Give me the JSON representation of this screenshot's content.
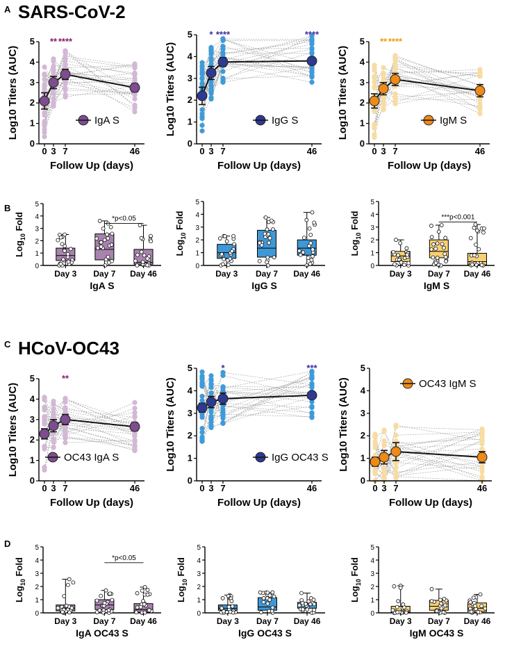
{
  "sections": {
    "A": {
      "letter": "A",
      "title": "SARS-CoV-2"
    },
    "B": {
      "letter": "B"
    },
    "C": {
      "letter": "C",
      "title": "HCoV-OC43"
    },
    "D": {
      "letter": "D"
    }
  },
  "colors": {
    "IgA_dark": "#7d4d8f",
    "IgA_light": "#d3b8d6",
    "IgA_box": "#a883ae",
    "IgG_dark": "#2c3a92",
    "IgG_light": "#3f9bd8",
    "IgG_box": "#3f97d5",
    "IgM_dark": "#ee8a17",
    "IgM_light": "#f7dca3",
    "IgM_box": "#f8cf73",
    "sigA": "#8c1a6e",
    "sigG": "#3a2d9c",
    "sigM": "#f19a10"
  },
  "chart_data": [
    {
      "id": "A1",
      "type": "line",
      "title": "",
      "xlabel": "Follow Up (days)",
      "ylabel": "Log10 Titers (AUC)",
      "xticks": [
        "0",
        "3",
        "7",
        "46"
      ],
      "x": [
        0,
        3,
        7,
        46
      ],
      "ylim": [
        0,
        5
      ],
      "yticks": [
        0,
        1,
        2,
        3,
        4,
        5
      ],
      "legend": "IgA S",
      "legend_position": "bottom-right",
      "color_key": "IgA",
      "series": [
        {
          "name": "IgA S mean",
          "values": [
            2.1,
            3.0,
            3.4,
            2.75
          ],
          "err": [
            0.4,
            0.3,
            0.25,
            0.2
          ]
        }
      ],
      "significance": [
        {
          "x": 3,
          "label": "**"
        },
        {
          "x": 7,
          "label": "****"
        }
      ],
      "sig_color_key": "sigA"
    },
    {
      "id": "A2",
      "type": "line",
      "title": "",
      "xlabel": "Follow Up (days)",
      "ylabel": "Log10 Titers (AUC)",
      "xticks": [
        "0",
        "3",
        "7",
        "46"
      ],
      "x": [
        0,
        3,
        7,
        46
      ],
      "ylim": [
        0,
        5
      ],
      "yticks": [
        0,
        1,
        2,
        3,
        4,
        5
      ],
      "legend": "IgG S",
      "legend_position": "bottom-right",
      "color_key": "IgG",
      "series": [
        {
          "name": "IgG S mean",
          "values": [
            2.2,
            3.25,
            3.75,
            3.8
          ],
          "err": [
            0.4,
            0.3,
            0.2,
            0.1
          ]
        }
      ],
      "significance": [
        {
          "x": 3,
          "label": "*"
        },
        {
          "x": 7,
          "label": "****"
        },
        {
          "x": 46,
          "label": "****"
        }
      ],
      "sig_color_key": "sigG"
    },
    {
      "id": "A3",
      "type": "line",
      "title": "",
      "xlabel": "Follow Up (days)",
      "ylabel": "Log10 Titers (AUC)",
      "xticks": [
        "0",
        "3",
        "7",
        "46"
      ],
      "x": [
        0,
        3,
        7,
        46
      ],
      "ylim": [
        0,
        5
      ],
      "yticks": [
        0,
        1,
        2,
        3,
        4,
        5
      ],
      "legend": "IgM S",
      "legend_position": "bottom-right",
      "color_key": "IgM",
      "series": [
        {
          "name": "IgM S mean",
          "values": [
            2.1,
            2.7,
            3.15,
            2.6
          ],
          "err": [
            0.35,
            0.3,
            0.3,
            0.3
          ]
        }
      ],
      "significance": [
        {
          "x": 3,
          "label": "**"
        },
        {
          "x": 7,
          "label": "****"
        }
      ],
      "sig_color_key": "sigM"
    },
    {
      "id": "B1",
      "type": "box",
      "title": "",
      "xlabel": "IgA S",
      "ylabel": "Log10 Fold",
      "color_key": "IgA",
      "categories": [
        "Day 3",
        "Day 7",
        "Day 46"
      ],
      "ylim": [
        0,
        5
      ],
      "yticks": [
        0,
        1,
        2,
        3,
        4,
        5
      ],
      "boxes": [
        {
          "min": 0.0,
          "q1": 0.4,
          "median": 0.8,
          "q3": 1.4,
          "max": 2.5
        },
        {
          "min": 0.0,
          "q1": 0.45,
          "median": 1.3,
          "q3": 2.55,
          "max": 3.6
        },
        {
          "min": 0.0,
          "q1": 0.1,
          "median": 0.25,
          "q3": 1.3,
          "max": 3.25
        }
      ],
      "comparison": {
        "from": 1,
        "to": 2,
        "label": "*p<0.05",
        "y": 3.4
      }
    },
    {
      "id": "B2",
      "type": "box",
      "title": "",
      "xlabel": "IgG S",
      "ylabel": "Log10 Fold",
      "color_key": "IgG",
      "categories": [
        "Day 3",
        "Day 7",
        "Day 46"
      ],
      "ylim": [
        0,
        5
      ],
      "yticks": [
        0,
        1,
        2,
        3,
        4,
        5
      ],
      "boxes": [
        {
          "min": 0.0,
          "q1": 0.55,
          "median": 1.0,
          "q3": 1.65,
          "max": 2.3
        },
        {
          "min": 0.0,
          "q1": 0.65,
          "median": 1.35,
          "q3": 2.75,
          "max": 3.75
        },
        {
          "min": 0.0,
          "q1": 0.8,
          "median": 1.35,
          "q3": 2.0,
          "max": 4.15
        }
      ]
    },
    {
      "id": "B3",
      "type": "box",
      "title": "",
      "xlabel": "IgM S",
      "ylabel": "Log10 Fold",
      "color_key": "IgM",
      "categories": [
        "Day 3",
        "Day 7",
        "Day 46"
      ],
      "ylim": [
        0,
        5
      ],
      "yticks": [
        0,
        1,
        2,
        3,
        4,
        5
      ],
      "boxes": [
        {
          "min": 0.0,
          "q1": 0.3,
          "median": 0.75,
          "q3": 1.1,
          "max": 2.0
        },
        {
          "min": 0.0,
          "q1": 0.6,
          "median": 1.1,
          "q3": 2.0,
          "max": 3.15
        },
        {
          "min": 0.0,
          "q1": 0.05,
          "median": 0.3,
          "q3": 0.95,
          "max": 3.2
        }
      ],
      "comparison": {
        "from": 1,
        "to": 2,
        "label": "***p<0.001",
        "y": 3.4
      }
    },
    {
      "id": "C1",
      "type": "line",
      "title": "",
      "xlabel": "Follow Up (days)",
      "ylabel": "Log10 Titers (AUC)",
      "xticks": [
        "0",
        "3",
        "7",
        "46"
      ],
      "x": [
        0,
        3,
        7,
        46
      ],
      "ylim": [
        0,
        5
      ],
      "yticks": [
        0,
        1,
        2,
        3,
        4,
        5
      ],
      "legend": "OC43 IgA S",
      "legend_position": "bottom-left",
      "color_key": "IgA",
      "series": [
        {
          "name": "OC43 IgA S mean",
          "values": [
            2.3,
            2.7,
            3.0,
            2.65
          ],
          "err": [
            0.25,
            0.3,
            0.25,
            0.2
          ]
        }
      ],
      "significance": [
        {
          "x": 7,
          "label": "**"
        }
      ],
      "sig_color_key": "sigA"
    },
    {
      "id": "C2",
      "type": "line",
      "title": "",
      "xlabel": "Follow Up (days)",
      "ylabel": "Log10 Titers (AUC)",
      "xticks": [
        "0",
        "3",
        "7",
        "46"
      ],
      "x": [
        0,
        3,
        7,
        46
      ],
      "ylim": [
        0,
        5
      ],
      "yticks": [
        0,
        1,
        2,
        3,
        4,
        5
      ],
      "legend": "IgG OC43 S",
      "legend_position": "bottom-right",
      "color_key": "IgG",
      "series": [
        {
          "name": "IgG OC43 S mean",
          "values": [
            3.25,
            3.5,
            3.65,
            3.8
          ],
          "err": [
            0.2,
            0.25,
            0.25,
            0.15
          ]
        }
      ],
      "significance": [
        {
          "x": 7,
          "label": "*"
        },
        {
          "x": 46,
          "label": "***"
        }
      ],
      "sig_color_key": "sigG"
    },
    {
      "id": "C3",
      "type": "line",
      "title": "",
      "xlabel": "Follow Up (days)",
      "ylabel": "Log10 Titers (AUC)",
      "xticks": [
        "0",
        "3",
        "7",
        "46"
      ],
      "x": [
        0,
        3,
        7,
        46
      ],
      "ylim": [
        0,
        5
      ],
      "yticks": [
        0,
        1,
        2,
        3,
        4,
        5
      ],
      "legend": "OC43 IgM S",
      "legend_position": "top-right",
      "color_key": "IgM",
      "series": [
        {
          "name": "OC43 IgM S mean",
          "values": [
            0.85,
            1.05,
            1.3,
            1.05
          ],
          "err": [
            0.2,
            0.3,
            0.4,
            0.25
          ]
        }
      ],
      "significance": [],
      "sig_color_key": "sigM"
    },
    {
      "id": "D1",
      "type": "box",
      "title": "",
      "xlabel": "IgA OC43 S",
      "ylabel": "Log10 Fold",
      "color_key": "IgA",
      "categories": [
        "Day 3",
        "Day 7",
        "Day 46"
      ],
      "ylim": [
        0,
        5
      ],
      "yticks": [
        0,
        1,
        2,
        3,
        4,
        5
      ],
      "boxes": [
        {
          "min": 0.0,
          "q1": 0.15,
          "median": 0.35,
          "q3": 0.6,
          "max": 2.55
        },
        {
          "min": 0.0,
          "q1": 0.25,
          "median": 0.6,
          "q3": 1.0,
          "max": 1.7
        },
        {
          "min": 0.0,
          "q1": 0.05,
          "median": 0.25,
          "q3": 0.7,
          "max": 1.95
        }
      ],
      "comparison": {
        "from": 1,
        "to": 2,
        "label": "*p<0.05",
        "y": 3.8
      }
    },
    {
      "id": "D2",
      "type": "box",
      "title": "",
      "xlabel": "IgG OC43 S",
      "ylabel": "Log10 Fold",
      "color_key": "IgG",
      "categories": [
        "Day 3",
        "Day 7",
        "Day 46"
      ],
      "ylim": [
        0,
        5
      ],
      "yticks": [
        0,
        1,
        2,
        3,
        4,
        5
      ],
      "boxes": [
        {
          "min": 0.0,
          "q1": 0.2,
          "median": 0.35,
          "q3": 0.6,
          "max": 1.35
        },
        {
          "min": 0.0,
          "q1": 0.2,
          "median": 0.45,
          "q3": 1.15,
          "max": 1.55
        },
        {
          "min": 0.0,
          "q1": 0.35,
          "median": 0.6,
          "q3": 0.8,
          "max": 1.5
        }
      ]
    },
    {
      "id": "D3",
      "type": "box",
      "title": "",
      "xlabel": "IgM OC43 S",
      "ylabel": "Log10 Fold",
      "color_key": "IgM",
      "categories": [
        "Day 3",
        "Day 7",
        "Day 46"
      ],
      "ylim": [
        0,
        5
      ],
      "yticks": [
        0,
        1,
        2,
        3,
        4,
        5
      ],
      "boxes": [
        {
          "min": 0.0,
          "q1": 0.05,
          "median": 0.15,
          "q3": 0.5,
          "max": 2.05
        },
        {
          "min": 0.0,
          "q1": 0.2,
          "median": 0.5,
          "q3": 0.95,
          "max": 1.8
        },
        {
          "min": 0.0,
          "q1": 0.1,
          "median": 0.35,
          "q3": 0.75,
          "max": 1.4
        }
      ]
    }
  ]
}
